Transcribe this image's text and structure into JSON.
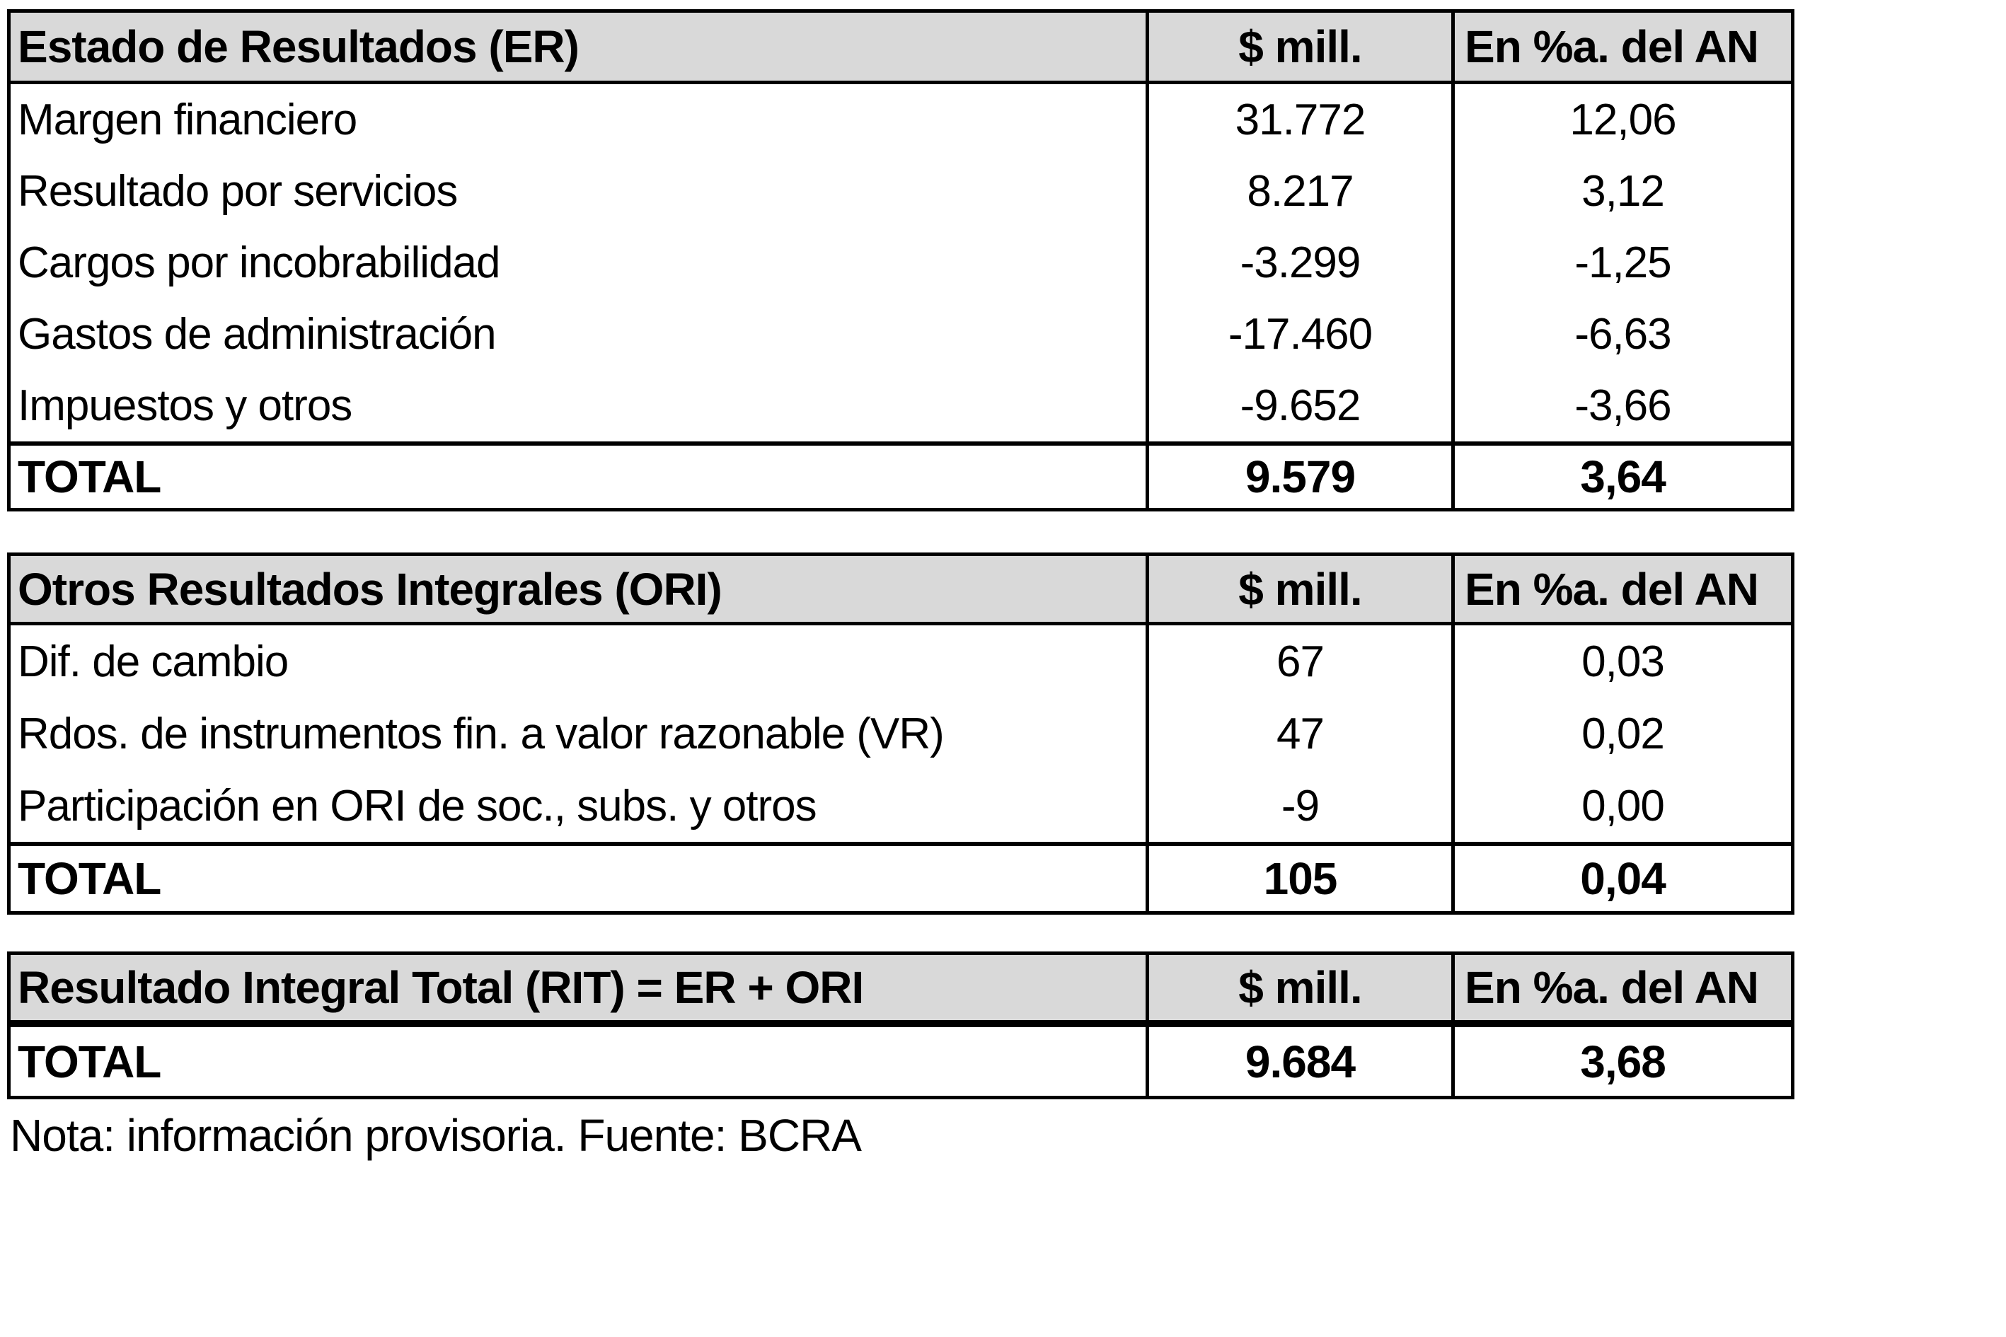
{
  "colors": {
    "background": "#ffffff",
    "header_bg": "#d9d9d9",
    "border": "#000000",
    "text": "#000000"
  },
  "tables": [
    {
      "title": "Estado de Resultados (ER)",
      "value_header": "$ mill.",
      "pct_header": "En %a. del AN",
      "rows": [
        {
          "label": "Margen financiero",
          "value": "31.772",
          "pct": "12,06"
        },
        {
          "label": "Resultado por servicios",
          "value": "8.217",
          "pct": "3,12"
        },
        {
          "label": "Cargos por incobrabilidad",
          "value": "-3.299",
          "pct": "-1,25"
        },
        {
          "label": "Gastos de administración",
          "value": "-17.460",
          "pct": "-6,63"
        },
        {
          "label": "Impuestos y otros",
          "value": "-9.652",
          "pct": "-3,66"
        }
      ],
      "total": {
        "label": "TOTAL",
        "value": "9.579",
        "pct": "3,64"
      }
    },
    {
      "title": "Otros Resultados Integrales (ORI)",
      "value_header": "$ mill.",
      "pct_header": "En %a. del AN",
      "rows": [
        {
          "label": "Dif. de cambio",
          "value": "67",
          "pct": "0,03"
        },
        {
          "label": "Rdos. de instrumentos fin. a valor razonable (VR)",
          "value": "47",
          "pct": "0,02"
        },
        {
          "label": "Participación en ORI de soc., subs. y otros",
          "value": "-9",
          "pct": "0,00"
        }
      ],
      "total": {
        "label": "TOTAL",
        "value": "105",
        "pct": "0,04"
      }
    },
    {
      "title": "Resultado Integral Total (RIT) = ER + ORI",
      "value_header": "$ mill.",
      "pct_header": "En %a. del AN",
      "rows": [],
      "total": {
        "label": "TOTAL",
        "value": "9.684",
        "pct": "3,68"
      }
    }
  ],
  "note": "Nota: información provisoria. Fuente: BCRA"
}
